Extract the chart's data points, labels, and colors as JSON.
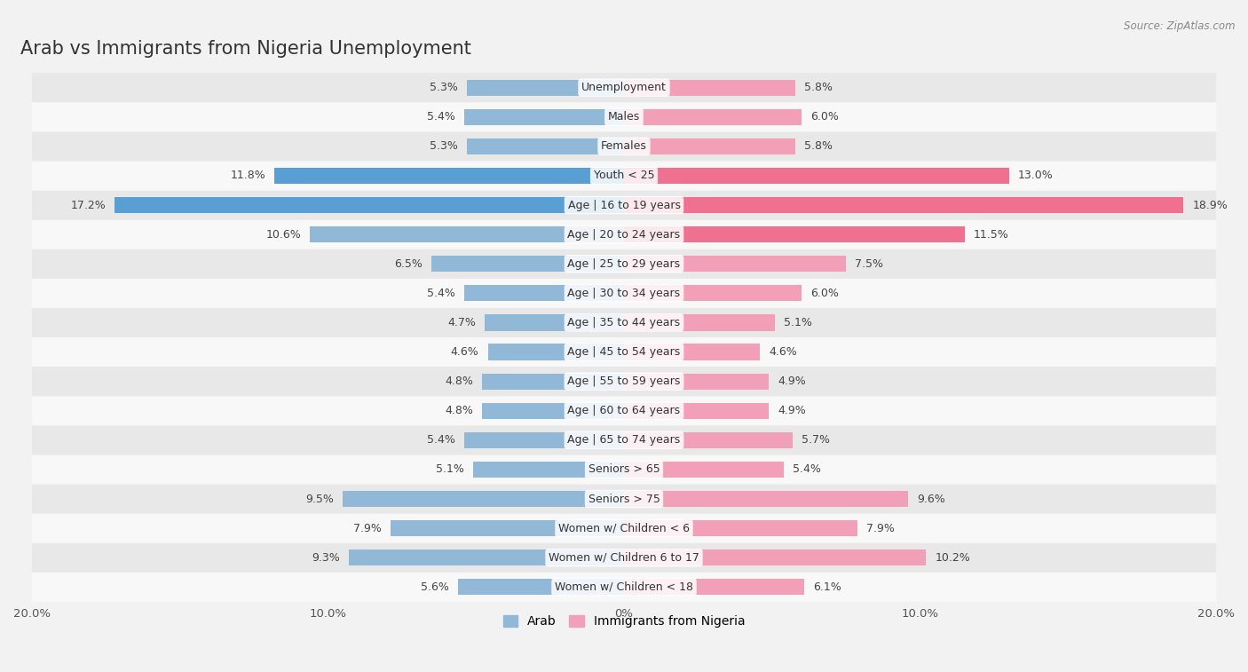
{
  "title": "Arab vs Immigrants from Nigeria Unemployment",
  "source": "Source: ZipAtlas.com",
  "categories": [
    "Unemployment",
    "Males",
    "Females",
    "Youth < 25",
    "Age | 16 to 19 years",
    "Age | 20 to 24 years",
    "Age | 25 to 29 years",
    "Age | 30 to 34 years",
    "Age | 35 to 44 years",
    "Age | 45 to 54 years",
    "Age | 55 to 59 years",
    "Age | 60 to 64 years",
    "Age | 65 to 74 years",
    "Seniors > 65",
    "Seniors > 75",
    "Women w/ Children < 6",
    "Women w/ Children 6 to 17",
    "Women w/ Children < 18"
  ],
  "arab_values": [
    5.3,
    5.4,
    5.3,
    11.8,
    17.2,
    10.6,
    6.5,
    5.4,
    4.7,
    4.6,
    4.8,
    4.8,
    5.4,
    5.1,
    9.5,
    7.9,
    9.3,
    5.6
  ],
  "nigeria_values": [
    5.8,
    6.0,
    5.8,
    13.0,
    18.9,
    11.5,
    7.5,
    6.0,
    5.1,
    4.6,
    4.9,
    4.9,
    5.7,
    5.4,
    9.6,
    7.9,
    10.2,
    6.1
  ],
  "arab_color": "#92b8d8",
  "nigeria_color": "#f2a0b8",
  "arab_highlight_color": "#5a9fd4",
  "nigeria_highlight_color": "#f07090",
  "arab_label": "Arab",
  "nigeria_label": "Immigrants from Nigeria",
  "x_max": 20.0,
  "background_color": "#f2f2f2",
  "row_light_color": "#f8f8f8",
  "row_dark_color": "#e8e8e8",
  "title_fontsize": 15,
  "label_fontsize": 9,
  "value_fontsize": 9
}
